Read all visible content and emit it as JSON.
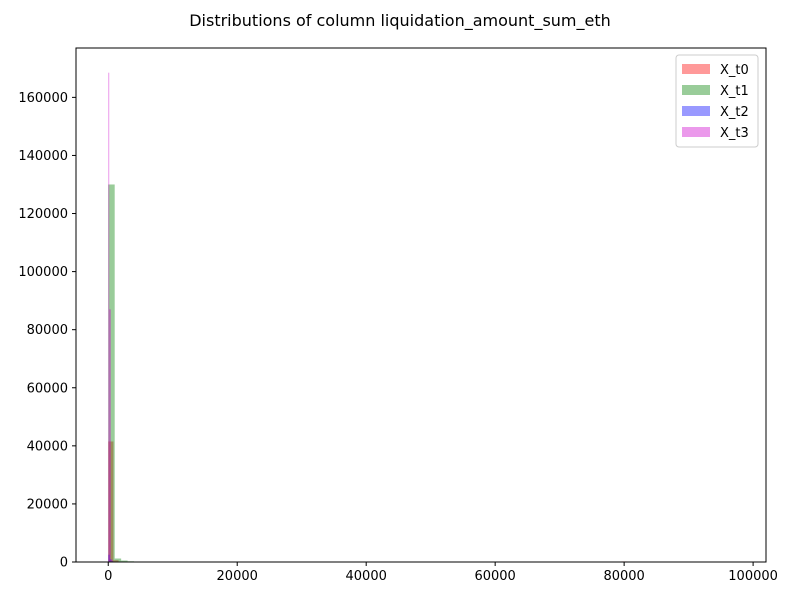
{
  "chart_data": {
    "type": "bar",
    "title": "Distributions of column liquidation_amount_sum_eth",
    "xlabel": "",
    "ylabel": "",
    "xlim": [
      -5000,
      102000
    ],
    "ylim": [
      0,
      177000
    ],
    "xticks": [
      0,
      20000,
      40000,
      60000,
      80000,
      100000
    ],
    "yticks": [
      0,
      20000,
      40000,
      60000,
      80000,
      100000,
      120000,
      140000,
      160000
    ],
    "grid": false,
    "legend_position": "top-right",
    "series": [
      {
        "name": "X_t0",
        "color": "#ff0000",
        "bins": [
          {
            "x0": 0,
            "x1": 800,
            "value": 41500
          },
          {
            "x0": 800,
            "x1": 1600,
            "value": 600
          },
          {
            "x0": 1600,
            "x1": 2400,
            "value": 150
          },
          {
            "x0": 79600,
            "x1": 80400,
            "value": 200
          }
        ]
      },
      {
        "name": "X_t1",
        "color": "#008000",
        "bins": [
          {
            "x0": 0,
            "x1": 1000,
            "value": 130000
          },
          {
            "x0": 1000,
            "x1": 2000,
            "value": 1200
          },
          {
            "x0": 2000,
            "x1": 3000,
            "value": 500
          },
          {
            "x0": 3000,
            "x1": 4000,
            "value": 250
          }
        ]
      },
      {
        "name": "X_t2",
        "color": "#0000ff",
        "bins": [
          {
            "x0": 0,
            "x1": 250,
            "value": 2500
          },
          {
            "x0": 250,
            "x1": 500,
            "value": 900
          },
          {
            "x0": 500,
            "x1": 750,
            "value": 300
          }
        ]
      },
      {
        "name": "X_t3",
        "color": "#cc00cc",
        "bins": [
          {
            "x0": 0,
            "x1": 120,
            "value": 168500
          },
          {
            "x0": 120,
            "x1": 400,
            "value": 87000
          },
          {
            "x0": 400,
            "x1": 700,
            "value": 800
          }
        ]
      }
    ]
  }
}
